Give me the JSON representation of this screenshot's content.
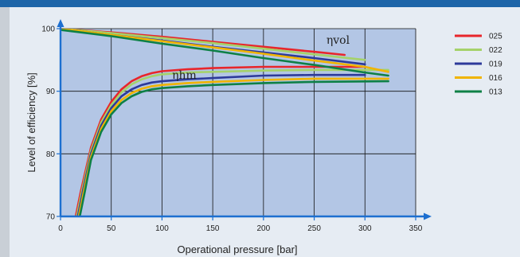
{
  "colors": {
    "plot_bg": "#b3c6e5",
    "page_bg": "#e6ecf3",
    "header": "#1d65a8",
    "sidebar": "#c9cfd6",
    "axis": "#1d6fd0",
    "grid": "#111111"
  },
  "chart_data": {
    "type": "line",
    "title": "",
    "xlabel": "Operational pressure [bar]",
    "ylabel": "Level of efficiency [%]",
    "xlim": [
      0,
      350
    ],
    "ylim": [
      70,
      100
    ],
    "xticks": [
      0,
      50,
      100,
      150,
      200,
      250,
      300,
      350
    ],
    "yticks": [
      70,
      80,
      90,
      100
    ],
    "grid": true,
    "legend_position": "right",
    "annotations": [
      {
        "text": "ηvol",
        "x": 262,
        "y": 97.6
      },
      {
        "text": "ηhm",
        "x": 110,
        "y": 92.0
      }
    ],
    "series": [
      {
        "name": "025",
        "color": "#e8262b",
        "vol": {
          "x": [
            0,
            50,
            100,
            150,
            200,
            250,
            280
          ],
          "y": [
            100,
            99.4,
            98.7,
            97.9,
            97.1,
            96.3,
            95.8
          ]
        },
        "hm": {
          "x": [
            15,
            20,
            30,
            40,
            50,
            60,
            70,
            80,
            90,
            100,
            125,
            150,
            200,
            250,
            300
          ],
          "y": [
            70,
            74,
            81,
            85.5,
            88.3,
            90.3,
            91.6,
            92.4,
            92.9,
            93.2,
            93.5,
            93.7,
            93.9,
            93.9,
            93.9
          ]
        }
      },
      {
        "name": "022",
        "color": "#a5d26a",
        "vol": {
          "x": [
            0,
            50,
            100,
            150,
            200,
            250,
            300
          ],
          "y": [
            100,
            99.3,
            98.5,
            97.7,
            96.8,
            95.9,
            95.0
          ]
        },
        "hm": {
          "x": [
            16,
            21,
            30,
            40,
            50,
            60,
            70,
            80,
            90,
            100,
            125,
            150,
            200,
            250,
            323
          ],
          "y": [
            70,
            74,
            80.5,
            85,
            87.8,
            89.8,
            91.1,
            91.9,
            92.4,
            92.7,
            93,
            93.1,
            93.3,
            93.4,
            93.4
          ]
        }
      },
      {
        "name": "019",
        "color": "#2d3a9a",
        "vol": {
          "x": [
            0,
            50,
            100,
            150,
            200,
            250,
            300
          ],
          "y": [
            100,
            99.0,
            98.1,
            97.1,
            96.2,
            95.3,
            94.3
          ]
        },
        "hm": {
          "x": [
            17,
            22,
            30,
            40,
            50,
            60,
            70,
            80,
            90,
            100,
            125,
            150,
            200,
            250,
            300
          ],
          "y": [
            70,
            74,
            80,
            84.5,
            87.3,
            89.2,
            90.3,
            91.0,
            91.4,
            91.6,
            91.9,
            92.1,
            92.5,
            92.6,
            92.6
          ]
        }
      },
      {
        "name": "016",
        "color": "#f0b400",
        "vol": {
          "x": [
            0,
            50,
            100,
            150,
            200,
            250,
            300,
            323
          ],
          "y": [
            100,
            99.0,
            98.0,
            97.0,
            96.0,
            94.9,
            93.9,
            93.1
          ]
        },
        "hm": {
          "x": [
            18,
            23,
            30,
            40,
            50,
            60,
            70,
            80,
            90,
            100,
            125,
            150,
            200,
            250,
            323
          ],
          "y": [
            70,
            74,
            79.5,
            84,
            86.8,
            88.6,
            89.7,
            90.4,
            90.8,
            91.0,
            91.3,
            91.5,
            91.8,
            92.0,
            92.0
          ]
        }
      },
      {
        "name": "013",
        "color": "#0e8046",
        "vol": {
          "x": [
            0,
            50,
            100,
            150,
            200,
            250,
            300,
            323
          ],
          "y": [
            99.8,
            98.8,
            97.6,
            96.5,
            95.3,
            94.2,
            93.0,
            92.5
          ]
        },
        "hm": {
          "x": [
            19,
            24,
            30,
            40,
            50,
            60,
            70,
            80,
            90,
            100,
            125,
            150,
            200,
            250,
            323
          ],
          "y": [
            70,
            74,
            79,
            83.5,
            86.3,
            88.1,
            89.2,
            89.9,
            90.3,
            90.5,
            90.8,
            91.0,
            91.3,
            91.5,
            91.6
          ]
        }
      }
    ]
  }
}
